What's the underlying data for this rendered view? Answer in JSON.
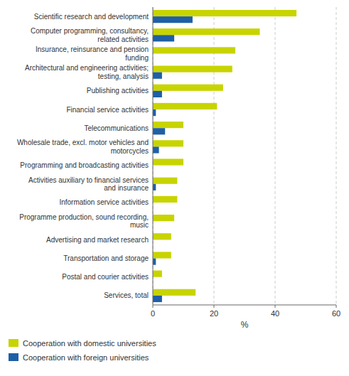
{
  "chart_data": {
    "type": "bar",
    "orientation": "horizontal",
    "categories": [
      "Scientific research and development",
      "Computer programming, consultancy,\nrelated activities",
      "Insurance, reinsurance and pension\nfunding",
      "Architectural and engineering activities;\ntesting, analysis",
      "Publishing activities",
      "Financial service activities",
      "Telecommunications",
      "Wholesale trade, excl. motor vehicles and\nmotorcycles",
      "Programming and broadcasting activities",
      "Activities auxiliary to financial services\nand insurance",
      "Information service activities",
      "Programme production, sound recording,\nmusic",
      "Advertising and market research",
      "Transportation and storage",
      "Postal and courier activities",
      "Services, total"
    ],
    "series": [
      {
        "name": "Cooperation with domestic universities",
        "color": "#c8d400",
        "values": [
          47,
          35,
          27,
          26,
          23,
          21,
          10,
          10,
          10,
          8,
          8,
          7,
          6,
          6,
          3,
          14
        ]
      },
      {
        "name": "Cooperation with foreign universities",
        "color": "#1f5fa6",
        "values": [
          13,
          7,
          0,
          3,
          3,
          1,
          4,
          2,
          0,
          1,
          0,
          0,
          0,
          1,
          0,
          3
        ]
      }
    ],
    "xlabel": "%",
    "xlim": [
      0,
      60
    ],
    "xticks": [
      0,
      20,
      40,
      60
    ],
    "grid": true,
    "legend": "bottom"
  }
}
